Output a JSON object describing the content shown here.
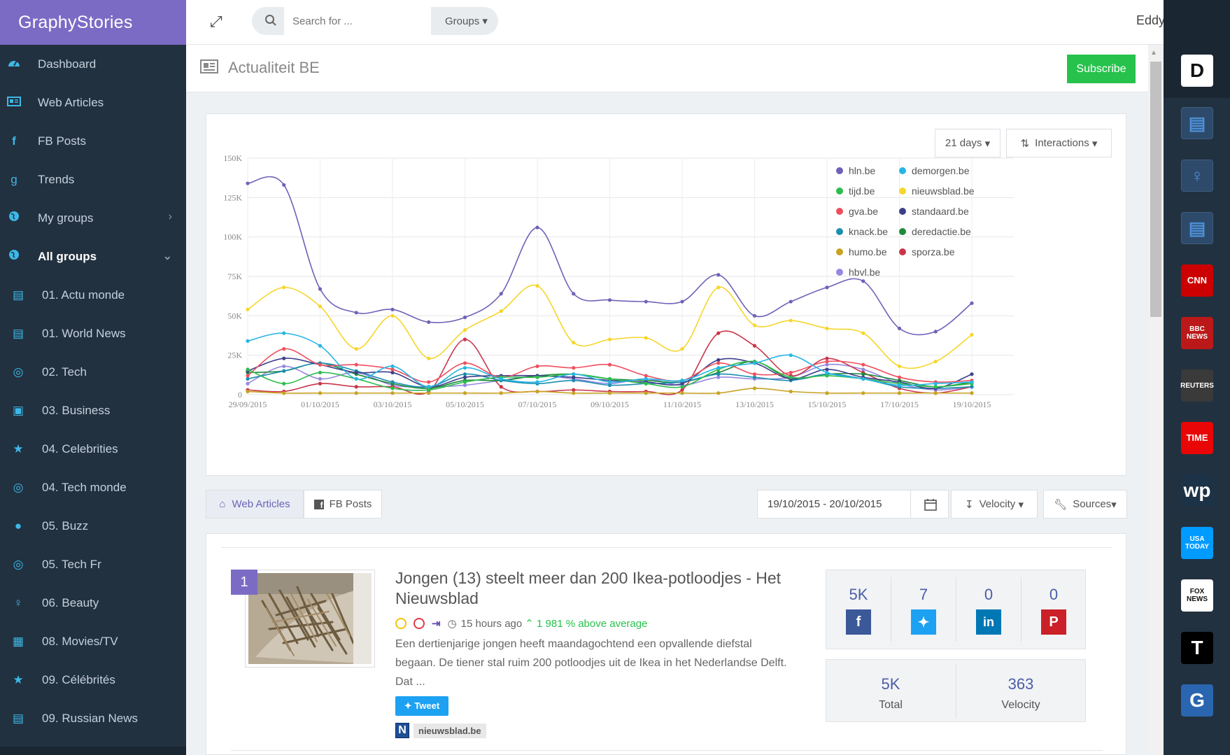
{
  "brand": "GraphyStories",
  "search": {
    "placeholder": "Search for ...",
    "groups_label": "Groups"
  },
  "user": {
    "name": "Eddy Thor"
  },
  "page": {
    "title": "Actualiteit BE",
    "subscribe_label": "Subscribe"
  },
  "sidebar": {
    "items": [
      {
        "label": "Dashboard",
        "icon": "dashboard-icon"
      },
      {
        "label": "Web Articles",
        "icon": "newspaper-icon"
      },
      {
        "label": "FB Posts",
        "icon": "facebook-icon"
      },
      {
        "label": "Trends",
        "icon": "trends-icon"
      },
      {
        "label": "My groups",
        "icon": "globe-icon"
      },
      {
        "label": "All groups",
        "icon": "globe-icon"
      }
    ],
    "groups": [
      {
        "label": "01. Actu monde",
        "icon": "newspaper-icon"
      },
      {
        "label": "01. World News",
        "icon": "newspaper-icon"
      },
      {
        "label": "02. Tech",
        "icon": "compass-icon"
      },
      {
        "label": "03. Business",
        "icon": "money-icon"
      },
      {
        "label": "04. Celebrities",
        "icon": "star-icon"
      },
      {
        "label": "04. Tech monde",
        "icon": "compass-icon"
      },
      {
        "label": "05. Buzz",
        "icon": "bomb-icon"
      },
      {
        "label": "05. Tech Fr",
        "icon": "compass-icon"
      },
      {
        "label": "06. Beauty",
        "icon": "female-icon"
      },
      {
        "label": "08. Movies/TV",
        "icon": "film-icon"
      },
      {
        "label": "09. Célébrités",
        "icon": "star-icon"
      },
      {
        "label": "09. Russian News",
        "icon": "newspaper-icon"
      }
    ]
  },
  "chart_controls": {
    "days": "21 days",
    "metric": "Interactions"
  },
  "chart_data": {
    "type": "line",
    "x": [
      "29/09/2015",
      "30/09/2015",
      "01/10/2015",
      "02/10/2015",
      "03/10/2015",
      "04/10/2015",
      "05/10/2015",
      "06/10/2015",
      "07/10/2015",
      "08/10/2015",
      "09/10/2015",
      "10/10/2015",
      "11/10/2015",
      "12/10/2015",
      "13/10/2015",
      "14/10/2015",
      "15/10/2015",
      "16/10/2015",
      "17/10/2015",
      "18/10/2015",
      "19/10/2015"
    ],
    "x_tick_labels": [
      "29/09/2015",
      "01/10/2015",
      "03/10/2015",
      "05/10/2015",
      "07/10/2015",
      "09/10/2015",
      "11/10/2015",
      "13/10/2015",
      "15/10/2015",
      "17/10/2015",
      "19/10/2015"
    ],
    "y_tick_labels": [
      "0",
      "25K",
      "50K",
      "75K",
      "100K",
      "125K",
      "150K"
    ],
    "ylim": [
      0,
      150000
    ],
    "grid": true,
    "legend_position": "top-right",
    "series": [
      {
        "name": "hln.be",
        "color": "#6f61b8",
        "values": [
          134000,
          133000,
          67000,
          52000,
          54000,
          46000,
          49000,
          64000,
          106000,
          64000,
          60000,
          59000,
          59000,
          76000,
          50000,
          59000,
          68000,
          72000,
          42000,
          40000,
          58000
        ]
      },
      {
        "name": "demorgen.be",
        "color": "#27b6e4",
        "values": [
          34000,
          39000,
          31000,
          10000,
          18000,
          5000,
          17000,
          10000,
          8000,
          13000,
          8000,
          10000,
          9000,
          17000,
          20000,
          25000,
          14000,
          10000,
          6000,
          7000,
          8000
        ]
      },
      {
        "name": "tijd.be",
        "color": "#2fbd4e",
        "values": [
          16000,
          7000,
          14000,
          10000,
          4000,
          3000,
          8000,
          11000,
          11000,
          13000,
          10000,
          7000,
          5000,
          16000,
          21000,
          11000,
          12000,
          10000,
          7000,
          5000,
          7000
        ]
      },
      {
        "name": "nieuwsblad.be",
        "color": "#f6d62b",
        "values": [
          54000,
          68000,
          56000,
          29000,
          50000,
          23000,
          41000,
          53000,
          69000,
          33000,
          35000,
          36000,
          29000,
          68000,
          44000,
          47000,
          42000,
          39000,
          18000,
          21000,
          38000
        ]
      },
      {
        "name": "gva.be",
        "color": "#ef4f5e",
        "values": [
          12000,
          29000,
          19000,
          19000,
          16000,
          8000,
          20000,
          11000,
          18000,
          17000,
          19000,
          12000,
          9000,
          20000,
          13000,
          14000,
          21000,
          19000,
          11000,
          8000,
          9000
        ]
      },
      {
        "name": "standaard.be",
        "color": "#3d3f8a",
        "values": [
          15000,
          23000,
          19000,
          14000,
          14000,
          5000,
          11000,
          12000,
          12000,
          11000,
          9000,
          8000,
          7000,
          22000,
          20000,
          10000,
          16000,
          11000,
          8000,
          4000,
          13000
        ]
      },
      {
        "name": "knack.be",
        "color": "#1b8fb0",
        "values": [
          10000,
          15000,
          20000,
          15000,
          8000,
          5000,
          13000,
          9000,
          7000,
          9000,
          6000,
          7000,
          8000,
          13000,
          11000,
          9000,
          13000,
          10000,
          5000,
          4000,
          5000
        ]
      },
      {
        "name": "deredactie.be",
        "color": "#1d8a3a",
        "values": [
          14000,
          15000,
          20000,
          13000,
          7000,
          4000,
          9000,
          9000,
          12000,
          13000,
          10000,
          9000,
          8000,
          14000,
          21000,
          10000,
          13000,
          13000,
          9000,
          5000,
          8000
        ]
      },
      {
        "name": "humo.be",
        "color": "#c8a321",
        "values": [
          2000,
          1000,
          1000,
          1000,
          1000,
          1000,
          1000,
          1000,
          2000,
          1000,
          1000,
          1000,
          1000,
          1000,
          4000,
          2000,
          1000,
          1000,
          1000,
          1000,
          1000
        ]
      },
      {
        "name": "sporza.be",
        "color": "#c9364a",
        "values": [
          3000,
          2000,
          7000,
          5000,
          5000,
          2000,
          35000,
          5000,
          2000,
          3000,
          2000,
          2000,
          3000,
          39000,
          31000,
          12000,
          23000,
          14000,
          4000,
          1000,
          5000
        ]
      },
      {
        "name": "hbvl.be",
        "color": "#9788e0",
        "values": [
          7000,
          18000,
          10000,
          14000,
          6000,
          5000,
          6000,
          9000,
          12000,
          10000,
          7000,
          10000,
          6000,
          11000,
          10000,
          11000,
          19000,
          16000,
          7000,
          3000,
          5000
        ]
      }
    ]
  },
  "tabs": [
    {
      "label": "Web Articles"
    },
    {
      "label": "FB Posts"
    }
  ],
  "filters": {
    "date_range": "19/10/2015 - 20/10/2015",
    "sort": "Velocity",
    "sources": "Sources"
  },
  "article": {
    "rank": "1",
    "title": "Jongen (13) steelt meer dan 200 Ikea-potloodjes - Het Nieuwsblad",
    "time": "15 hours ago",
    "above_average": "1 981 % above average",
    "description": "Een dertienjarige jongen heeft maandagochtend een opvallende diefstal begaan. De tiener stal ruim 200 potloodjes uit de Ikea in het Nederlandse Delft. Dat ...",
    "tweet_label": "Tweet",
    "source_letter": "N",
    "source": "nieuwsblad.be",
    "shares": {
      "facebook": "5K",
      "twitter": "7",
      "linkedin": "0",
      "pinterest": "0"
    },
    "total": "5K",
    "total_label": "Total",
    "velocity": "363",
    "velocity_label": "Velocity"
  },
  "right_sources": [
    {
      "name": "D",
      "color": "#ffffff"
    },
    {
      "name": "newspaper",
      "color": "#2e4a6a"
    },
    {
      "name": "female",
      "color": "#2e4a6a"
    },
    {
      "name": "newspaper",
      "color": "#2e4a6a"
    },
    {
      "name": "CNN",
      "color": "#cc0000"
    },
    {
      "name": "BBC NEWS",
      "color": "#bb1919"
    },
    {
      "name": "REUTERS",
      "color": "#3a3a3a"
    },
    {
      "name": "TIME",
      "color": "#e90606"
    },
    {
      "name": "wp",
      "color": "#1c3246"
    },
    {
      "name": "USA TODAY",
      "color": "#009bff"
    },
    {
      "name": "FOX NEWS",
      "color": "#ffffff"
    },
    {
      "name": "T",
      "color": "#000000"
    },
    {
      "name": "G",
      "color": "#2a66b0"
    }
  ]
}
